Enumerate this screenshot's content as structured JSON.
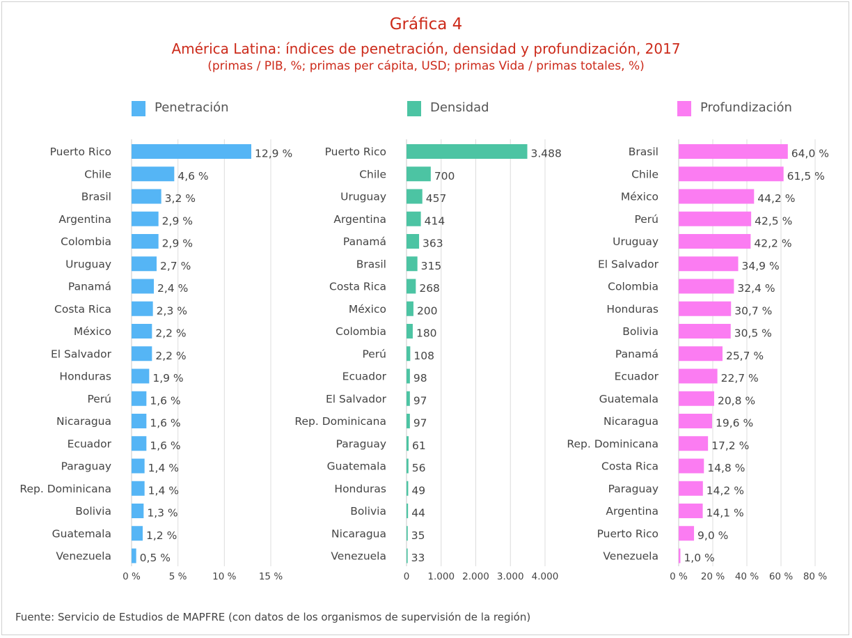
{
  "title": "Gráfica 4",
  "subtitle": "América Latina: índices de penetración, densidad y profundización, 2017",
  "units_note": "(primas / PIB, %; primas per cápita, USD; primas Vida / primas totales, %)",
  "source": "Fuente: Servicio de Estudios de MAPFRE (con datos de los organismos de supervisión de la región)",
  "chart_data": [
    {
      "type": "bar",
      "orientation": "horizontal",
      "legend": "Penetración",
      "color": "#55b5f5",
      "categories": [
        "Puerto Rico",
        "Chile",
        "Brasil",
        "Argentina",
        "Colombia",
        "Uruguay",
        "Panamá",
        "Costa Rica",
        "México",
        "El Salvador",
        "Honduras",
        "Perú",
        "Nicaragua",
        "Ecuador",
        "Paraguay",
        "Rep. Dominicana",
        "Bolivia",
        "Guatemala",
        "Venezuela"
      ],
      "values": [
        12.9,
        4.6,
        3.2,
        2.9,
        2.9,
        2.7,
        2.4,
        2.3,
        2.2,
        2.2,
        1.9,
        1.6,
        1.6,
        1.6,
        1.4,
        1.4,
        1.3,
        1.2,
        0.5
      ],
      "value_labels": [
        "12,9 %",
        "4,6 %",
        "3,2 %",
        "2,9 %",
        "2,9 %",
        "2,7 %",
        "2,4 %",
        "2,3 %",
        "2,2 %",
        "2,2 %",
        "1,9 %",
        "1,6 %",
        "1,6 %",
        "1,6 %",
        "1,4 %",
        "1,4 %",
        "1,3 %",
        "1,2 %",
        "0,5 %"
      ],
      "xlim": [
        0,
        15
      ],
      "ticks": [
        0,
        5,
        10,
        15
      ],
      "tick_labels": [
        "0 %",
        "5 %",
        "10 %",
        "15 %"
      ]
    },
    {
      "type": "bar",
      "orientation": "horizontal",
      "legend": "Densidad",
      "color": "#4cc4a3",
      "categories": [
        "Puerto Rico",
        "Chile",
        "Uruguay",
        "Argentina",
        "Panamá",
        "Brasil",
        "Costa Rica",
        "México",
        "Colombia",
        "Perú",
        "Ecuador",
        "El Salvador",
        "Rep. Dominicana",
        "Paraguay",
        "Guatemala",
        "Honduras",
        "Bolivia",
        "Nicaragua",
        "Venezuela"
      ],
      "values": [
        3488,
        700,
        457,
        414,
        363,
        315,
        268,
        200,
        180,
        108,
        98,
        97,
        97,
        61,
        56,
        49,
        44,
        35,
        33
      ],
      "value_labels": [
        "3.488",
        "700",
        "457",
        "414",
        "363",
        "315",
        "268",
        "200",
        "180",
        "108",
        "98",
        "97",
        "97",
        "61",
        "56",
        "49",
        "44",
        "35",
        "33"
      ],
      "xlim": [
        0,
        4000
      ],
      "ticks": [
        0,
        1000,
        2000,
        3000,
        4000
      ],
      "tick_labels": [
        "0",
        "1.000",
        "2.000",
        "3.000",
        "4.000"
      ]
    },
    {
      "type": "bar",
      "orientation": "horizontal",
      "legend": "Profundización",
      "color": "#fb7cf2",
      "categories": [
        "Brasil",
        "Chile",
        "México",
        "Perú",
        "Uruguay",
        "El Salvador",
        "Colombia",
        "Honduras",
        "Bolivia",
        "Panamá",
        "Ecuador",
        "Guatemala",
        "Nicaragua",
        "Rep. Dominicana",
        "Costa Rica",
        "Paraguay",
        "Argentina",
        "Puerto Rico",
        "Venezuela"
      ],
      "values": [
        64.0,
        61.5,
        44.2,
        42.5,
        42.2,
        34.9,
        32.4,
        30.7,
        30.5,
        25.7,
        22.7,
        20.8,
        19.6,
        17.2,
        14.8,
        14.2,
        14.1,
        9.0,
        1.0
      ],
      "value_labels": [
        "64,0 %",
        "61,5 %",
        "44,2 %",
        "42,5 %",
        "42,2 %",
        "34,9 %",
        "32,4 %",
        "30,7 %",
        "30,5 %",
        "25,7 %",
        "22,7 %",
        "20,8 %",
        "19,6 %",
        "17,2 %",
        "14,8 %",
        "14,2 %",
        "14,1 %",
        "9,0 %",
        "1,0 %"
      ],
      "xlim": [
        0,
        80
      ],
      "ticks": [
        0,
        20,
        40,
        60,
        80
      ],
      "tick_labels": [
        "0 %",
        "20 %",
        "40 %",
        "60 %",
        "80 %"
      ]
    }
  ]
}
